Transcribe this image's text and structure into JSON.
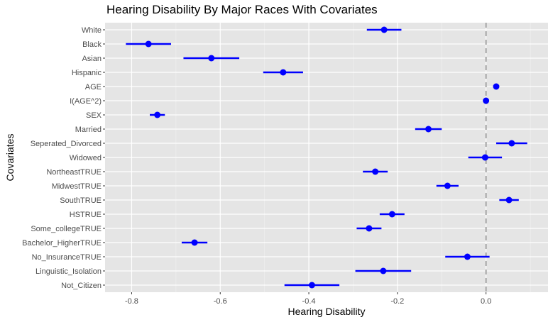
{
  "chart_data": {
    "type": "scatter",
    "subtype": "coefficient-plot-with-error-bars",
    "title": "Hearing Disability By Major Races With Covariates",
    "xlabel": "Hearing Disability",
    "ylabel": "Covariates",
    "xlim": [
      -0.86,
      0.14
    ],
    "xticks": [
      -0.8,
      -0.6,
      -0.4,
      -0.2,
      0.0
    ],
    "xtick_labels": [
      "-0.8",
      "-0.6",
      "-0.4",
      "-0.2",
      "0.0"
    ],
    "reference_line_x": 0.0,
    "grid": true,
    "point_color": "#0000ff",
    "panel_bg": "#e5e5e5",
    "ref_line_color": "#b3b3b3",
    "categories": [
      "White",
      "Black",
      "Asian",
      "Hispanic",
      "AGE",
      "I(AGE^2)",
      "SEX",
      "Married",
      "Seperated_Divorced",
      "Widowed",
      "NortheastTRUE",
      "MidwestTRUE",
      "SouthTRUE",
      "HSTRUE",
      "Some_collegeTRUE",
      "Bachelor_HigherTRUE",
      "No_InsuranceTRUE",
      "Linguistic_Isolation",
      "Not_Citizen"
    ],
    "estimates": [
      -0.23,
      -0.762,
      -0.62,
      -0.458,
      0.023,
      0.0,
      -0.742,
      -0.13,
      0.058,
      -0.002,
      -0.25,
      -0.087,
      0.052,
      -0.212,
      -0.264,
      -0.658,
      -0.042,
      -0.232,
      -0.393
    ],
    "lower": [
      -0.269,
      -0.813,
      -0.683,
      -0.503,
      0.023,
      0.0,
      -0.759,
      -0.16,
      0.023,
      -0.04,
      -0.278,
      -0.112,
      0.03,
      -0.24,
      -0.292,
      -0.687,
      -0.092,
      -0.295,
      -0.455
    ],
    "upper": [
      -0.191,
      -0.711,
      -0.557,
      -0.413,
      0.023,
      0.0,
      -0.725,
      -0.1,
      0.093,
      0.036,
      -0.222,
      -0.062,
      0.074,
      -0.184,
      -0.236,
      -0.629,
      0.008,
      -0.169,
      -0.331
    ]
  }
}
